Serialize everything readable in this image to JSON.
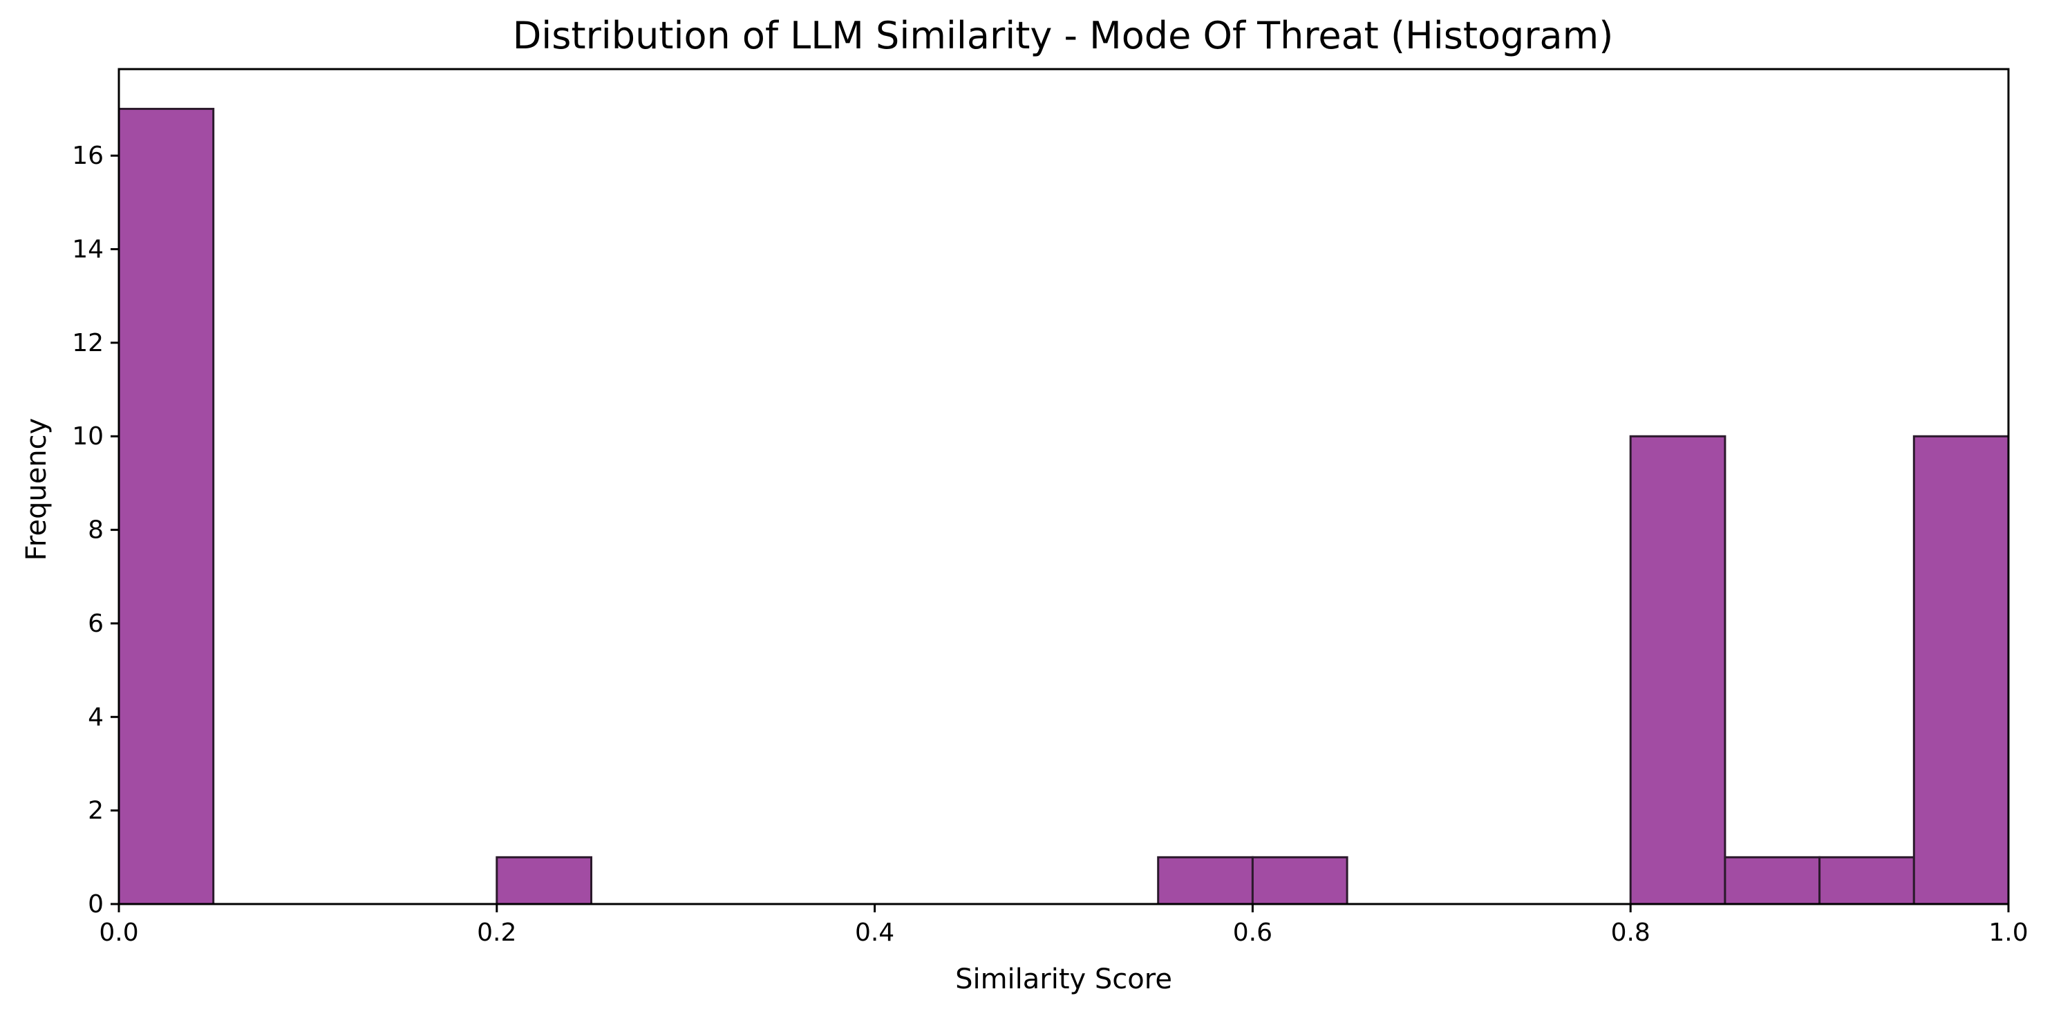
{
  "chart_data": {
    "type": "bar",
    "title": "Distribution of LLM Similarity - Mode Of Threat (Histogram)",
    "xlabel": "Similarity Score",
    "ylabel": "Frequency",
    "xlim": [
      0.0,
      1.0
    ],
    "ylim": [
      0,
      17.85
    ],
    "bin_width": 0.05,
    "bins": [
      {
        "start": 0.0,
        "end": 0.05,
        "count": 17
      },
      {
        "start": 0.2,
        "end": 0.25,
        "count": 1
      },
      {
        "start": 0.55,
        "end": 0.6,
        "count": 1
      },
      {
        "start": 0.6,
        "end": 0.65,
        "count": 1
      },
      {
        "start": 0.8,
        "end": 0.85,
        "count": 10
      },
      {
        "start": 0.85,
        "end": 0.9,
        "count": 1
      },
      {
        "start": 0.9,
        "end": 0.95,
        "count": 1
      },
      {
        "start": 0.95,
        "end": 1.0,
        "count": 10
      }
    ],
    "x_ticks": [
      "0.0",
      "0.2",
      "0.4",
      "0.6",
      "0.8",
      "1.0"
    ],
    "y_ticks": [
      "0",
      "2",
      "4",
      "6",
      "8",
      "10",
      "12",
      "14",
      "16"
    ],
    "grid": false,
    "legend": "none",
    "bar_color": "#A24CA3",
    "edge_color": "#2B1A2C"
  }
}
